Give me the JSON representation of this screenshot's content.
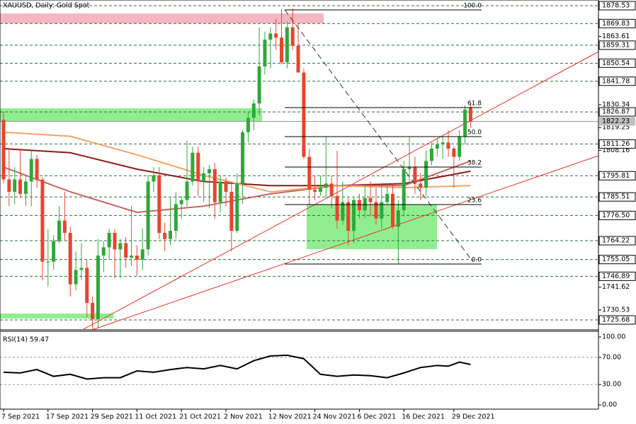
{
  "chart_data": {
    "type": "candlestick",
    "title": "XAUUSD, Daily: Gold Spot",
    "ylim": [
      1720.85,
      1881.29
    ],
    "yticks": [
      1863.61,
      1830.34,
      1819.25,
      1808.16,
      1741.62,
      1730.53
    ],
    "levels": [
      1878.53,
      1869.83,
      1859.31,
      1850.54,
      1841.78,
      1826.87,
      1811.26,
      1795.81,
      1785.51,
      {
        "value": 1776.5,
        "label": "1776.50"
      },
      1764.22,
      1755.05,
      1746.89,
      1725.68
    ],
    "last_price": 1822.23,
    "up_color": "#2fa83a",
    "down_color": "#e8452c",
    "xticks": [
      {
        "value": 0,
        "label": "7 Sep 2021"
      },
      {
        "value": 8,
        "label": "17 Sep 2021"
      },
      {
        "value": 16,
        "label": "29 Sep 2021"
      },
      {
        "value": 24,
        "label": "11 Oct 2021"
      },
      {
        "value": 32,
        "label": "21 Oct 2021"
      },
      {
        "value": 40,
        "label": "2 Nov 2021"
      },
      {
        "value": 48,
        "label": "12 Nov 2021"
      },
      {
        "value": 56,
        "label": "24 Nov 2021"
      },
      {
        "value": 64,
        "label": "6 Dec 2021"
      },
      {
        "value": 72,
        "label": "16 Dec 2021"
      },
      {
        "value": 81,
        "label": "29 Dec 2021"
      }
    ],
    "candles": [
      [
        1823,
        1827,
        1792,
        1794
      ],
      [
        1794,
        1809,
        1781,
        1788
      ],
      [
        1788,
        1800,
        1782,
        1794
      ],
      [
        1794,
        1808,
        1785,
        1787
      ],
      [
        1787,
        1796,
        1781,
        1793
      ],
      [
        1793,
        1808,
        1781,
        1804
      ],
      [
        1804,
        1806,
        1790,
        1794
      ],
      [
        1794,
        1795,
        1745,
        1754
      ],
      [
        1754,
        1770,
        1742,
        1754
      ],
      [
        1754,
        1767,
        1750,
        1764
      ],
      [
        1764,
        1781,
        1763,
        1774
      ],
      [
        1774,
        1788,
        1764,
        1768
      ],
      [
        1768,
        1771,
        1737,
        1743
      ],
      [
        1743,
        1759,
        1740,
        1750
      ],
      [
        1750,
        1763,
        1745,
        1751
      ],
      [
        1751,
        1755,
        1727,
        1734
      ],
      [
        1734,
        1737,
        1721,
        1726
      ],
      [
        1726,
        1765,
        1722,
        1757
      ],
      [
        1757,
        1764,
        1749,
        1761
      ],
      [
        1761,
        1770,
        1755,
        1768
      ],
      [
        1768,
        1770,
        1746,
        1760
      ],
      [
        1760,
        1765,
        1746,
        1763
      ],
      [
        1763,
        1766,
        1751,
        1756
      ],
      [
        1756,
        1781,
        1752,
        1757
      ],
      [
        1757,
        1762,
        1747,
        1755
      ],
      [
        1755,
        1770,
        1750,
        1760
      ],
      [
        1760,
        1796,
        1757,
        1793
      ],
      [
        1793,
        1800,
        1788,
        1796
      ],
      [
        1796,
        1800,
        1765,
        1768
      ],
      [
        1768,
        1773,
        1759,
        1765
      ],
      [
        1765,
        1785,
        1762,
        1769
      ],
      [
        1769,
        1788,
        1765,
        1782
      ],
      [
        1782,
        1786,
        1775,
        1784
      ],
      [
        1784,
        1813,
        1781,
        1793
      ],
      [
        1793,
        1810,
        1791,
        1807
      ],
      [
        1807,
        1810,
        1786,
        1793
      ],
      [
        1793,
        1800,
        1783,
        1797
      ],
      [
        1797,
        1801,
        1780,
        1799
      ],
      [
        1799,
        1802,
        1775,
        1783
      ],
      [
        1783,
        1796,
        1778,
        1793
      ],
      [
        1793,
        1795,
        1781,
        1788
      ],
      [
        1788,
        1793,
        1759,
        1769
      ],
      [
        1769,
        1797,
        1768,
        1792
      ],
      [
        1792,
        1818,
        1782,
        1817
      ],
      [
        1817,
        1827,
        1812,
        1824
      ],
      [
        1824,
        1833,
        1818,
        1831
      ],
      [
        1831,
        1868,
        1825,
        1849
      ],
      [
        1849,
        1866,
        1845,
        1862
      ],
      [
        1862,
        1868,
        1848,
        1865
      ],
      [
        1865,
        1872,
        1857,
        1863
      ],
      [
        1863,
        1877,
        1850,
        1851
      ],
      [
        1851,
        1871,
        1848,
        1868
      ],
      [
        1868,
        1877,
        1857,
        1859
      ],
      [
        1859,
        1870,
        1846,
        1846
      ],
      [
        1846,
        1848,
        1804,
        1805
      ],
      [
        1805,
        1809,
        1782,
        1789
      ],
      [
        1789,
        1796,
        1784,
        1788
      ],
      [
        1788,
        1796,
        1786,
        1790
      ],
      [
        1790,
        1815,
        1785,
        1792
      ],
      [
        1792,
        1796,
        1780,
        1786
      ],
      [
        1786,
        1808,
        1770,
        1774
      ],
      [
        1774,
        1793,
        1772,
        1783
      ],
      [
        1783,
        1785,
        1762,
        1769
      ],
      [
        1769,
        1785,
        1763,
        1784
      ],
      [
        1784,
        1787,
        1775,
        1779
      ],
      [
        1779,
        1792,
        1775,
        1785
      ],
      [
        1785,
        1793,
        1776,
        1783
      ],
      [
        1783,
        1790,
        1772,
        1775
      ],
      [
        1775,
        1791,
        1770,
        1783
      ],
      [
        1783,
        1792,
        1782,
        1787
      ],
      [
        1787,
        1792,
        1770,
        1771
      ],
      [
        1771,
        1784,
        1753,
        1779
      ],
      [
        1779,
        1803,
        1776,
        1799
      ],
      [
        1799,
        1815,
        1793,
        1800
      ],
      [
        1800,
        1805,
        1787,
        1792
      ],
      [
        1792,
        1797,
        1784,
        1790
      ],
      [
        1790,
        1808,
        1786,
        1803
      ],
      [
        1803,
        1812,
        1801,
        1809
      ],
      [
        1809,
        1814,
        1805,
        1811
      ],
      [
        1811,
        1815,
        1804,
        1812
      ],
      [
        1812,
        1818,
        1805,
        1809
      ],
      [
        1809,
        1810,
        1790,
        1805
      ],
      [
        1805,
        1818,
        1803,
        1815
      ],
      [
        1815,
        1830,
        1811,
        1828
      ],
      [
        1829,
        1831,
        1819,
        1822
      ]
    ],
    "ma_x": [
      0,
      12,
      24,
      36,
      48,
      60,
      72,
      84
    ],
    "mas": [
      {
        "color": "#8b1a1a",
        "values": [
          1809,
          1807,
          1799,
          1793,
          1791,
          1791,
          1792,
          1798
        ]
      },
      {
        "color": "#c86464",
        "values": [
          1800,
          1788,
          1778,
          1781,
          1787,
          1791,
          1791,
          1803
        ]
      },
      {
        "color": "#f4a46a",
        "values": [
          1817,
          1815,
          1806,
          1796,
          1788,
          1791,
          1790,
          1791
        ]
      }
    ],
    "fib_labels": [
      "100.0",
      "61.8",
      "50.0",
      "38.2",
      "23.6",
      "0.0"
    ],
    "rsi": {
      "title": "RSI(14) 59.47",
      "ylim": [
        -6.25,
        108.33
      ],
      "yticks": [
        {
          "value": 100,
          "label": "100.00"
        },
        {
          "value": 70,
          "label": "70.00"
        },
        {
          "value": 30,
          "label": "30.00"
        },
        {
          "value": 0,
          "label": "0.00"
        }
      ],
      "x": [
        0,
        3,
        6,
        9,
        12,
        15,
        18,
        21,
        24,
        27,
        30,
        33,
        36,
        39,
        42,
        45,
        48,
        51,
        54,
        57,
        60,
        63,
        66,
        69,
        72,
        75,
        78,
        80,
        82,
        84
      ],
      "values": [
        48,
        47,
        52,
        42,
        45,
        38,
        40,
        40,
        50,
        48,
        52,
        55,
        53,
        58,
        53,
        65,
        72,
        73,
        68,
        45,
        42,
        44,
        43,
        40,
        47,
        55,
        58,
        57,
        63,
        59.47
      ]
    }
  }
}
